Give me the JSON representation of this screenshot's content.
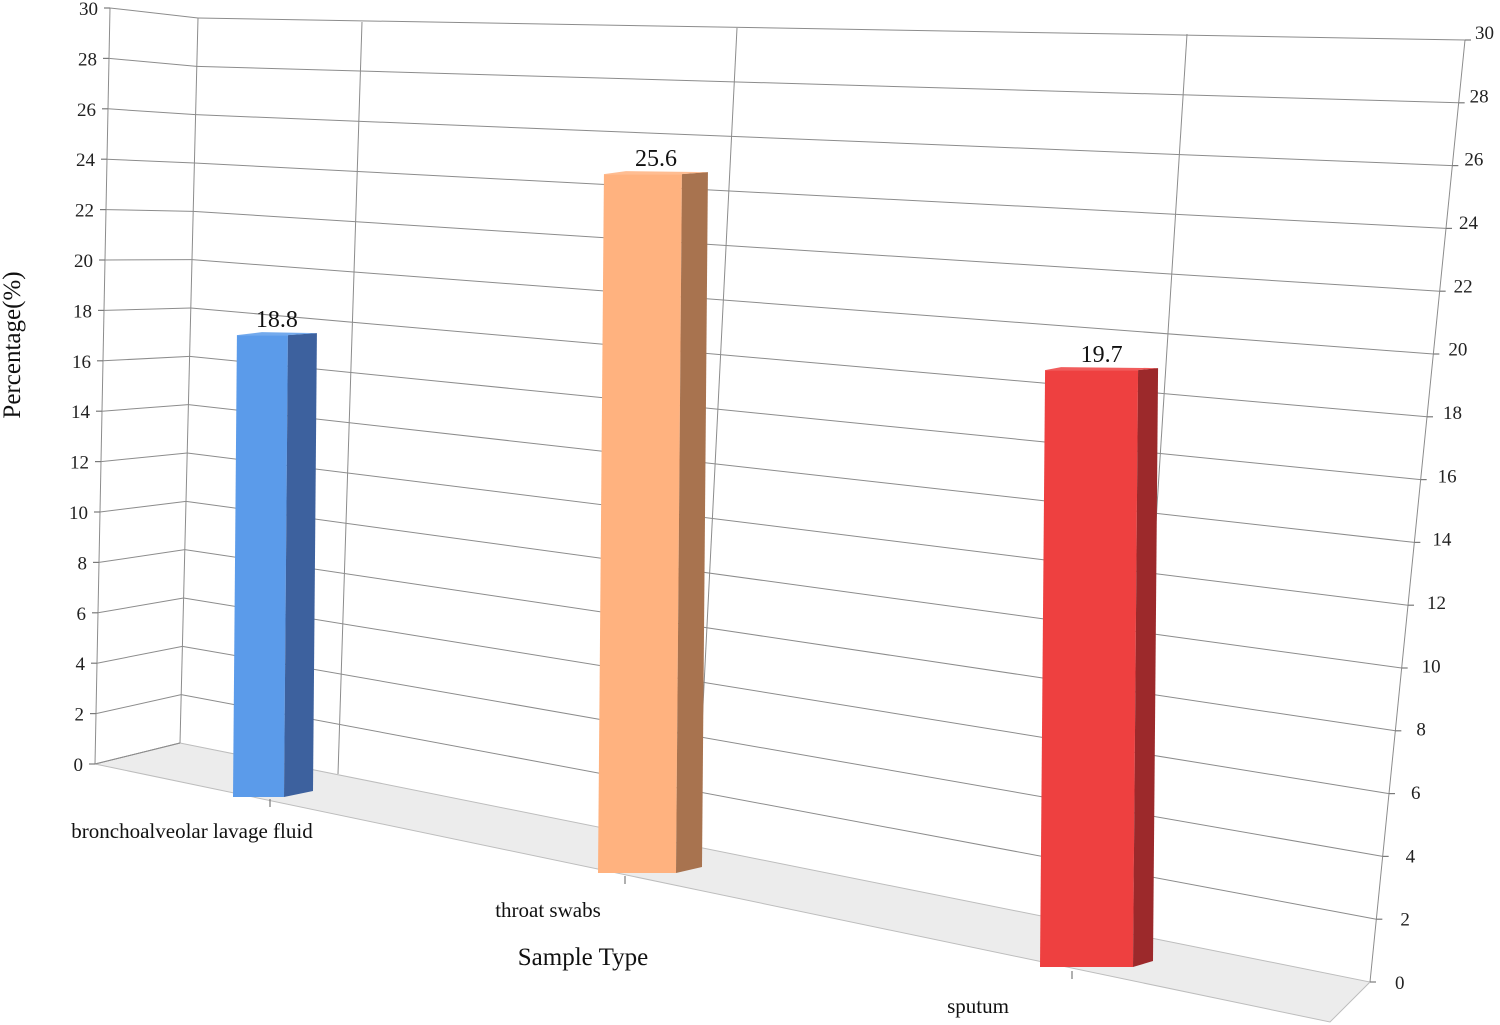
{
  "chart_data": {
    "type": "bar",
    "categories": [
      "bronchoalveolar lavage fluid",
      "throat swabs",
      "sputum"
    ],
    "values": [
      18.8,
      25.6,
      19.7
    ],
    "data_labels": [
      "18.8",
      "25.6",
      "19.7"
    ],
    "title": "",
    "xlabel": "Sample Type",
    "ylabel": "Percentage(%)",
    "ylim": [
      0,
      30
    ],
    "yticks": [
      "0",
      "2",
      "4",
      "6",
      "8",
      "10",
      "12",
      "14",
      "16",
      "18",
      "20",
      "22",
      "24",
      "26",
      "28",
      "30"
    ],
    "grid": true,
    "legend": "none",
    "style": "3d-column",
    "colors": [
      "#5B9BEA",
      "#FFB27F",
      "#EE4040"
    ],
    "side_colors": [
      "#3D619E",
      "#A8734F",
      "#9C292B"
    ]
  }
}
